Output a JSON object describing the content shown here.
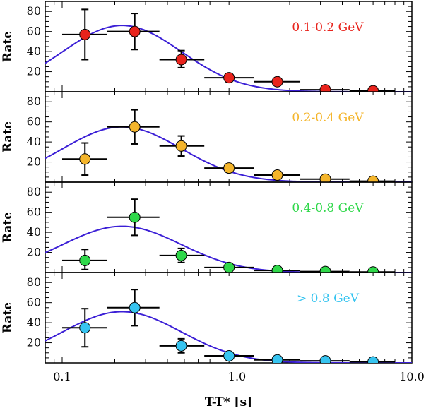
{
  "chart_data": {
    "type": "scatter",
    "xlabel": "T-T* [s]",
    "x_scale": "log",
    "xlim": [
      0.08,
      10.0
    ],
    "x_ticks": [
      0.1,
      1.0,
      10.0
    ],
    "x_tick_labels": [
      "0.1",
      "1.0",
      "10.0"
    ],
    "panels": [
      {
        "label": "0.1-0.2 GeV",
        "color": "#e8231c",
        "ylabel": "Rate",
        "ylim": [
          0,
          90
        ],
        "y_ticks": [
          20,
          40,
          60,
          80
        ],
        "y_tick_labels": [
          "20",
          "40",
          "60",
          "80"
        ],
        "points": [
          {
            "x": 0.135,
            "y": 57,
            "xlo": 0.1,
            "xhi": 0.18,
            "ylo": 32,
            "yhi": 82
          },
          {
            "x": 0.26,
            "y": 60,
            "xlo": 0.18,
            "xhi": 0.36,
            "ylo": 42,
            "yhi": 78
          },
          {
            "x": 0.48,
            "y": 32,
            "xlo": 0.36,
            "xhi": 0.65,
            "ylo": 24,
            "yhi": 41
          },
          {
            "x": 0.9,
            "y": 14,
            "xlo": 0.65,
            "xhi": 1.25,
            "ylo": 10,
            "yhi": 18
          },
          {
            "x": 1.7,
            "y": 10,
            "xlo": 1.25,
            "xhi": 2.3,
            "ylo": 7,
            "yhi": 13
          },
          {
            "x": 3.2,
            "y": 2,
            "xlo": 2.3,
            "xhi": 4.4,
            "ylo": 1,
            "yhi": 3
          },
          {
            "x": 6.0,
            "y": 1,
            "xlo": 4.4,
            "xhi": 8.0,
            "ylo": 0.5,
            "yhi": 1.5
          }
        ],
        "model_peak": 66
      },
      {
        "label": "0.2-0.4 GeV",
        "color": "#f4b52b",
        "ylabel": "Rate",
        "ylim": [
          0,
          90
        ],
        "y_ticks": [
          20,
          40,
          60,
          80
        ],
        "y_tick_labels": [
          "20",
          "40",
          "60",
          "80"
        ],
        "points": [
          {
            "x": 0.135,
            "y": 23,
            "xlo": 0.1,
            "xhi": 0.18,
            "ylo": 7,
            "yhi": 39
          },
          {
            "x": 0.26,
            "y": 55,
            "xlo": 0.18,
            "xhi": 0.36,
            "ylo": 38,
            "yhi": 72
          },
          {
            "x": 0.48,
            "y": 36,
            "xlo": 0.36,
            "xhi": 0.65,
            "ylo": 26,
            "yhi": 46
          },
          {
            "x": 0.9,
            "y": 14,
            "xlo": 0.65,
            "xhi": 1.25,
            "ylo": 10,
            "yhi": 18
          },
          {
            "x": 1.7,
            "y": 7,
            "xlo": 1.25,
            "xhi": 2.3,
            "ylo": 5,
            "yhi": 9
          },
          {
            "x": 3.2,
            "y": 3,
            "xlo": 2.3,
            "xhi": 4.4,
            "ylo": 2,
            "yhi": 4
          },
          {
            "x": 6.0,
            "y": 1,
            "xlo": 4.4,
            "xhi": 8.0,
            "ylo": 0.5,
            "yhi": 1.5
          }
        ],
        "model_peak": 55
      },
      {
        "label": "0.4-0.8 GeV",
        "color": "#2fd84a",
        "ylabel": "Rate",
        "ylim": [
          0,
          90
        ],
        "y_ticks": [
          20,
          40,
          60,
          80
        ],
        "y_tick_labels": [
          "20",
          "40",
          "60",
          "80"
        ],
        "points": [
          {
            "x": 0.135,
            "y": 12,
            "xlo": 0.1,
            "xhi": 0.18,
            "ylo": 3,
            "yhi": 23
          },
          {
            "x": 0.26,
            "y": 55,
            "xlo": 0.18,
            "xhi": 0.36,
            "ylo": 37,
            "yhi": 73
          },
          {
            "x": 0.48,
            "y": 17,
            "xlo": 0.36,
            "xhi": 0.65,
            "ylo": 10,
            "yhi": 24
          },
          {
            "x": 0.9,
            "y": 5,
            "xlo": 0.65,
            "xhi": 1.25,
            "ylo": 3,
            "yhi": 7
          },
          {
            "x": 1.7,
            "y": 2,
            "xlo": 1.25,
            "xhi": 2.3,
            "ylo": 1,
            "yhi": 3
          },
          {
            "x": 3.2,
            "y": 1,
            "xlo": 2.3,
            "xhi": 4.4,
            "ylo": 0.5,
            "yhi": 1.5
          },
          {
            "x": 6.0,
            "y": 0.5,
            "xlo": 4.4,
            "xhi": 8.0,
            "ylo": 0.2,
            "yhi": 0.8
          }
        ],
        "model_peak": 46
      },
      {
        "label": "> 0.8 GeV",
        "color": "#36c4f0",
        "ylabel": "Rate",
        "ylim": [
          0,
          90
        ],
        "y_ticks": [
          20,
          40,
          60,
          80
        ],
        "y_tick_labels": [
          "20",
          "40",
          "60",
          "80"
        ],
        "points": [
          {
            "x": 0.135,
            "y": 35,
            "xlo": 0.1,
            "xhi": 0.18,
            "ylo": 16,
            "yhi": 54
          },
          {
            "x": 0.26,
            "y": 55,
            "xlo": 0.18,
            "xhi": 0.36,
            "ylo": 37,
            "yhi": 73
          },
          {
            "x": 0.48,
            "y": 17,
            "xlo": 0.36,
            "xhi": 0.65,
            "ylo": 10,
            "yhi": 24
          },
          {
            "x": 0.9,
            "y": 7,
            "xlo": 0.65,
            "xhi": 1.25,
            "ylo": 4,
            "yhi": 10
          },
          {
            "x": 1.7,
            "y": 3,
            "xlo": 1.25,
            "xhi": 2.3,
            "ylo": 2,
            "yhi": 4
          },
          {
            "x": 3.2,
            "y": 2,
            "xlo": 2.3,
            "xhi": 4.4,
            "ylo": 1,
            "yhi": 3
          },
          {
            "x": 6.0,
            "y": 1,
            "xlo": 4.4,
            "xhi": 8.0,
            "ylo": 0.5,
            "yhi": 1.5
          }
        ],
        "model_peak": 51
      }
    ],
    "model_color": "#3b1fd6",
    "model_peak_x": 0.22,
    "grid": false
  }
}
